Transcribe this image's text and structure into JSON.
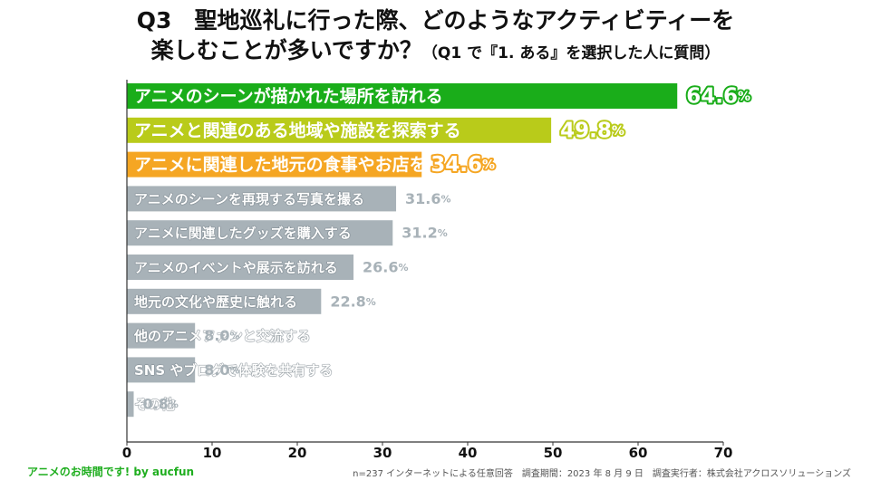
{
  "title": {
    "line1": "Q3　聖地巡礼に行った際、どのようなアクティビティーを",
    "line2": "楽しむことが多いですか？",
    "line2_sub": "（Q1 で『1. ある』を選択した人に質問）"
  },
  "chart_data": {
    "type": "bar",
    "orientation": "horizontal",
    "categories": [
      "アニメのシーンが描かれた場所を訪れる",
      "アニメと関連のある地域や施設を探索する",
      "アニメに関連した地元の食事やお店を楽しむ",
      "アニメのシーンを再現する写真を撮る",
      "アニメに関連したグッズを購入する",
      "アニメのイベントや展示を訪れる",
      "地元の文化や歴史に触れる",
      "他のアニメファンと交流する",
      "SNS やブログで体験を共有する",
      "その他"
    ],
    "values": [
      64.6,
      49.8,
      34.6,
      31.6,
      31.2,
      26.6,
      22.8,
      8.0,
      8.0,
      0.8
    ],
    "value_labels": [
      "64.6",
      "49.8",
      "34.6",
      "31.6",
      "31.2",
      "26.6",
      "22.8",
      "8.0",
      "8.0",
      "0.8"
    ],
    "unit": "%",
    "xlim": [
      0,
      70
    ],
    "xticks": [
      0,
      10,
      20,
      30,
      40,
      50,
      60,
      70
    ],
    "colors": [
      "#1aad1a",
      "#b9cb1a",
      "#f5a623",
      "#a8b2b8",
      "#a8b2b8",
      "#a8b2b8",
      "#a8b2b8",
      "#a8b2b8",
      "#a8b2b8",
      "#a8b2b8"
    ],
    "grid": false,
    "legend": "none"
  },
  "footer": {
    "left": "アニメのお時間です! by aucfun",
    "right": "n=237 インターネットによる任意回答　調査期間：2023 年 8 月 9 日　調査実行者：株式会社アクロスソリューションズ"
  }
}
